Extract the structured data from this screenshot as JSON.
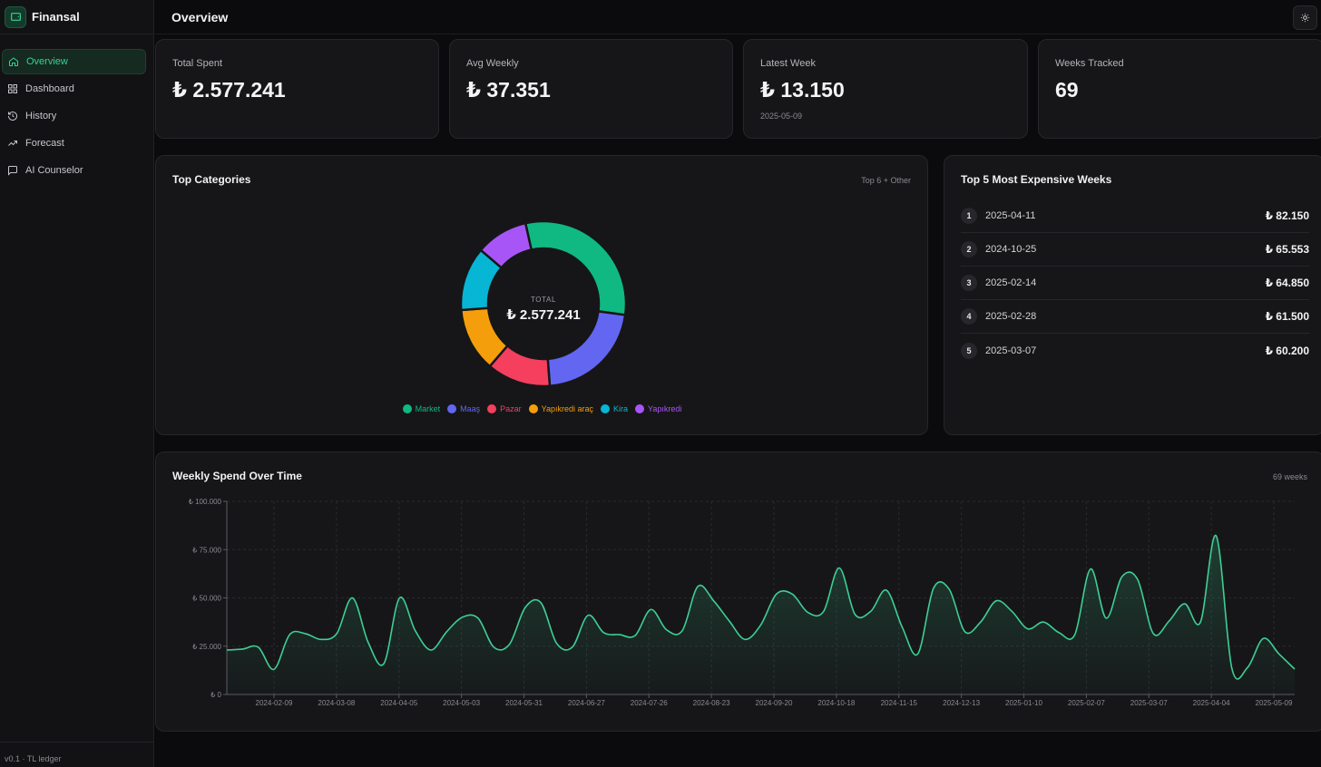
{
  "app": {
    "name": "Finansal",
    "footer": "v0.1 · TL ledger"
  },
  "nav": [
    {
      "label": "Overview",
      "icon": "home-icon",
      "active": true
    },
    {
      "label": "Dashboard",
      "icon": "grid-icon",
      "active": false
    },
    {
      "label": "History",
      "icon": "history-icon",
      "active": false
    },
    {
      "label": "Forecast",
      "icon": "trend-icon",
      "active": false
    },
    {
      "label": "AI Counselor",
      "icon": "chat-icon",
      "active": false
    }
  ],
  "header": {
    "title": "Overview",
    "theme_icon": "sun-icon"
  },
  "stats": [
    {
      "label": "Total Spent",
      "value": "₺ 2.577.241",
      "sub": ""
    },
    {
      "label": "Avg Weekly",
      "value": "₺ 37.351",
      "sub": ""
    },
    {
      "label": "Latest Week",
      "value": "₺ 13.150",
      "sub": "2025-05-09"
    },
    {
      "label": "Weeks Tracked",
      "value": "69",
      "sub": ""
    }
  ],
  "categories_card": {
    "title": "Top Categories",
    "note": "Top 6 + Other",
    "total_label": "TOTAL",
    "total_value": "₺ 2.577.241"
  },
  "top_weeks": {
    "title": "Top 5 Most Expensive Weeks",
    "items": [
      {
        "rank": "1",
        "date": "2025-04-11",
        "amount": "₺ 82.150"
      },
      {
        "rank": "2",
        "date": "2024-10-25",
        "amount": "₺ 65.553"
      },
      {
        "rank": "3",
        "date": "2025-02-14",
        "amount": "₺ 64.850"
      },
      {
        "rank": "4",
        "date": "2025-02-28",
        "amount": "₺ 61.500"
      },
      {
        "rank": "5",
        "date": "2025-03-07",
        "amount": "₺ 60.200"
      }
    ]
  },
  "weekly_card": {
    "title": "Weekly Spend Over Time",
    "note": "69 weeks"
  },
  "colors": {
    "accent": "#34d399",
    "line": "#3ecf95",
    "Market": "#10b981",
    "Maaş": "#6366f1",
    "Pazar": "#f43f5e",
    "Yapıkredi araç": "#f59e0b",
    "Kira": "#06b6d4",
    "Yapıkredi": "#a855f7"
  },
  "chart_data": [
    {
      "type": "pie",
      "title": "Top Categories",
      "categories": [
        "Market",
        "Maaş",
        "Pazar",
        "Yapıkredi araç",
        "Kira",
        "Yapıkredi"
      ],
      "values": [
        27,
        19,
        11,
        11,
        11,
        9
      ],
      "legend": "bottom"
    },
    {
      "type": "area",
      "title": "Weekly Spend Over Time",
      "x_tick_labels": [
        "2024-02-09",
        "2024-03-08",
        "2024-04-05",
        "2024-05-03",
        "2024-05-31",
        "2024-06-27",
        "2024-07-26",
        "2024-08-23",
        "2024-09-20",
        "2024-10-18",
        "2024-11-15",
        "2024-12-13",
        "2025-01-10",
        "2025-02-07",
        "2025-03-07",
        "2025-04-04",
        "2025-05-09"
      ],
      "y_tick_labels": [
        "₺ 0",
        "₺ 25.000",
        "₺ 50.000",
        "₺ 75.000",
        "₺ 100.000"
      ],
      "ylim": [
        0,
        100000
      ],
      "grid": true,
      "values": [
        23000,
        23500,
        24500,
        13000,
        31000,
        31500,
        28500,
        31500,
        50000,
        27000,
        16000,
        50000,
        33000,
        23000,
        32500,
        40000,
        39500,
        24500,
        26000,
        45000,
        47500,
        26500,
        24500,
        41000,
        32000,
        31000,
        30500,
        44000,
        33500,
        33000,
        56000,
        48500,
        38000,
        28500,
        36000,
        52000,
        52000,
        42500,
        43000,
        65500,
        41500,
        43000,
        54000,
        35000,
        21000,
        55000,
        54500,
        32500,
        37500,
        48500,
        43000,
        34000,
        37500,
        32000,
        31000,
        65000,
        39500,
        61000,
        59500,
        31500,
        38000,
        47000,
        37500,
        82150,
        13500,
        14000,
        29000,
        21000,
        13150
      ]
    }
  ]
}
